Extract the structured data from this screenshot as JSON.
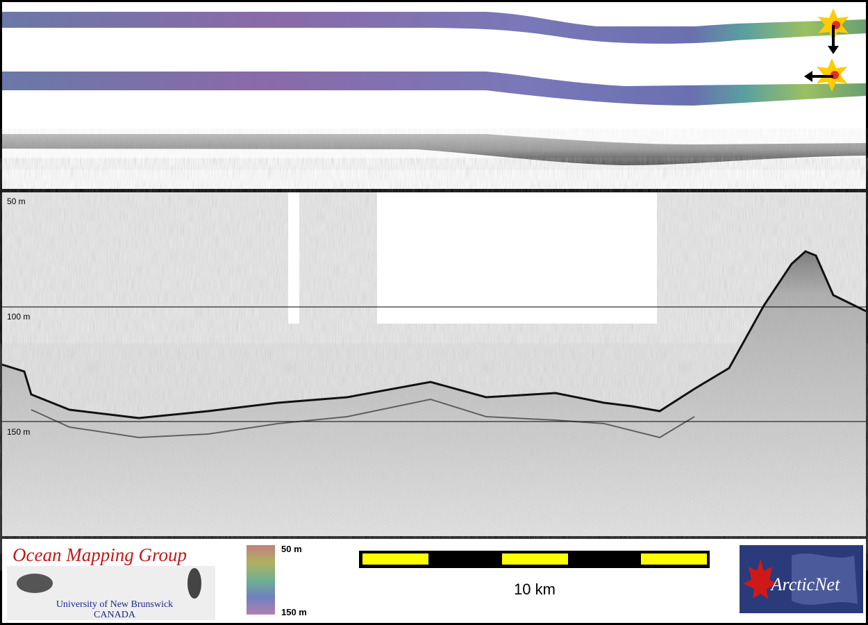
{
  "profile": {
    "depth_labels": [
      "50 m",
      "100 m",
      "150 m"
    ]
  },
  "logo_left": {
    "title": "Ocean Mapping Group",
    "line1": "University of New Brunswick",
    "line2": "CANADA"
  },
  "colorbar": {
    "top_label": "50 m",
    "bottom_label": "150 m"
  },
  "scale_bar": {
    "label": "10 km"
  },
  "logo_right": {
    "title": "ArcticNet"
  }
}
